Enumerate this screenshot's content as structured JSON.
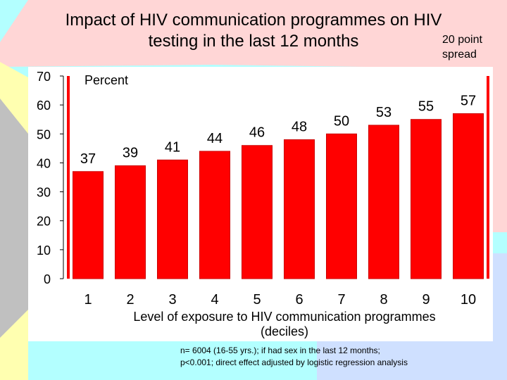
{
  "slide": {
    "title_line1": "Impact of HIV communication programmes on HIV",
    "title_line2": "testing in the last 12 months",
    "annotation_line1": "20 point",
    "annotation_line2": "spread",
    "footnote_line1": "n= 6004   (16-55 yrs.); if had sex in the last 12 months;",
    "footnote_line2": "p<0.001; direct effect adjusted by logistic regression analysis"
  },
  "chart_data": {
    "type": "bar",
    "title": "Impact of HIV communication programmes on HIV testing in the last 12 months",
    "ylabel": "Percent",
    "xlabel_line1": "Level of exposure to HIV communication programmes",
    "xlabel_line2": "(deciles)",
    "categories": [
      "1",
      "2",
      "3",
      "4",
      "5",
      "6",
      "7",
      "8",
      "9",
      "10"
    ],
    "values": [
      37,
      39,
      41,
      44,
      46,
      48,
      50,
      53,
      55,
      57
    ],
    "data_labels": [
      "37",
      "39",
      "41",
      "44",
      "46",
      "48",
      "50",
      "53",
      "55",
      "57"
    ],
    "yticks": [
      0,
      10,
      20,
      30,
      40,
      50,
      60,
      70
    ],
    "ylim": [
      0,
      70
    ],
    "grid": false,
    "bar_color": "#ff0000",
    "bar_edge_color": "#cc0000",
    "plot_background": "#ff0000"
  },
  "colors": {
    "bg_cyan": "#b3ffff",
    "bg_pink": "#ffd6d6",
    "bg_blue": "#cfe0ff",
    "bg_gray": "#c0c0c0",
    "bg_yellow": "#ffffb0"
  }
}
